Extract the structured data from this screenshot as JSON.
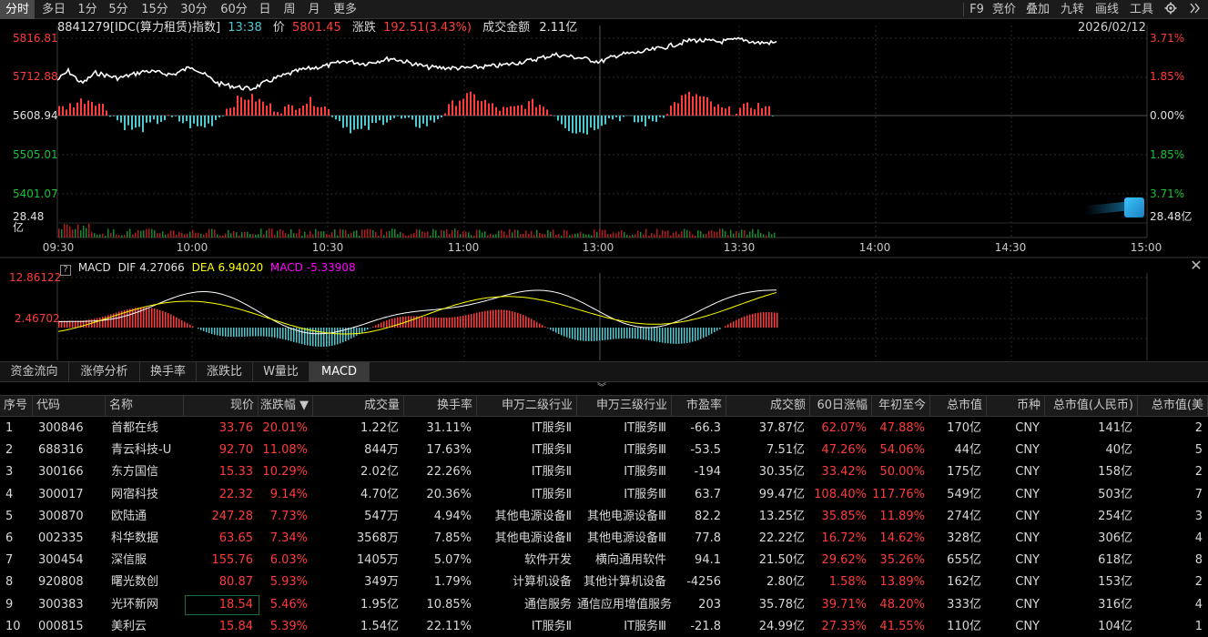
{
  "toolbar": {
    "tabs": [
      "分时",
      "多日",
      "1分",
      "5分",
      "15分",
      "30分",
      "60分",
      "日",
      "周",
      "月",
      "更多"
    ],
    "right": [
      "F9",
      "竞价",
      "叠加",
      "九转",
      "画线",
      "工具"
    ],
    "icons": [
      "settings-icon",
      "double-chevron-right-icon"
    ]
  },
  "price_chart": {
    "code": "8841279[IDC(算力租赁)指数]",
    "time": "13:38",
    "price_label": "价",
    "price": "5801.45",
    "change_label": "涨跌",
    "change": "192.51(3.43%)",
    "amount_label": "成交金额",
    "amount": "2.11亿",
    "date": "2026/02/12",
    "y_left": [
      "5816.81",
      "5712.88",
      "5608.94",
      "5505.01",
      "5401.07"
    ],
    "y_right": [
      "3.71%",
      "1.85%",
      "0.00%",
      "1.85%",
      "3.71%"
    ],
    "volume_left": "28.48亿",
    "volume_right": "28.48亿",
    "x_labels": [
      "09:30",
      "10:00",
      "10:30",
      "11:00",
      "13:00",
      "13:30",
      "14:00",
      "14:30",
      "15:00"
    ],
    "colors": {
      "up": "#ff3b3b",
      "down": "#19c23a",
      "line": "#ffffff",
      "bar_down": "#4fc8d0"
    }
  },
  "macd": {
    "help": "?",
    "name": "MACD",
    "dif_label": "DIF",
    "dif": "4.27066",
    "dea_label": "DEA",
    "dea": "6.94020",
    "macd_label": "MACD",
    "macd_val": "-5.33908",
    "y_labels": [
      "12.86122",
      "2.46702"
    ],
    "close": "✕",
    "colors": {
      "dif": "#ffffff",
      "dea": "#ffff00",
      "macd": "#ff00ff",
      "bar_up": "#ff3b3b",
      "bar_down": "#4fc8d0"
    }
  },
  "indicator_tabs": [
    "资金流向",
    "涨停分析",
    "换手率",
    "涨跌比",
    "W量比",
    "MACD"
  ],
  "indicator_active": "MACD",
  "collapse_glyph": "︾",
  "table": {
    "headers": [
      "序号",
      "代码",
      "名称",
      "现价",
      "涨跌幅 ▼",
      "成交量",
      "换手率",
      "申万二级行业",
      "申万三级行业",
      "市盈率",
      "成交额",
      "60日涨幅",
      "年初至今",
      "总市值",
      "币种",
      "总市值(人民币)",
      "总市值(美"
    ],
    "rows": [
      [
        "1",
        "300846",
        "首都在线",
        "33.76",
        "20.01%",
        "1.22亿",
        "31.11%",
        "IT服务Ⅱ",
        "IT服务Ⅲ",
        "-66.3",
        "37.87亿",
        "62.07%",
        "47.88%",
        "170亿",
        "CNY",
        "141亿",
        "2"
      ],
      [
        "2",
        "688316",
        "青云科技-U",
        "92.70",
        "11.08%",
        "844万",
        "17.63%",
        "IT服务Ⅱ",
        "IT服务Ⅲ",
        "-53.5",
        "7.51亿",
        "47.26%",
        "54.06%",
        "44亿",
        "CNY",
        "40亿",
        "5"
      ],
      [
        "3",
        "300166",
        "东方国信",
        "15.33",
        "10.29%",
        "2.02亿",
        "22.26%",
        "IT服务Ⅱ",
        "IT服务Ⅲ",
        "-194",
        "30.35亿",
        "33.42%",
        "50.00%",
        "175亿",
        "CNY",
        "158亿",
        "2"
      ],
      [
        "4",
        "300017",
        "网宿科技",
        "22.32",
        "9.14%",
        "4.70亿",
        "20.36%",
        "IT服务Ⅱ",
        "IT服务Ⅲ",
        "63.7",
        "99.47亿",
        "108.40%",
        "117.76%",
        "549亿",
        "CNY",
        "503亿",
        "7"
      ],
      [
        "5",
        "300870",
        "欧陆通",
        "247.28",
        "7.73%",
        "547万",
        "4.94%",
        "其他电源设备Ⅱ",
        "其他电源设备Ⅲ",
        "82.2",
        "13.25亿",
        "35.85%",
        "11.89%",
        "274亿",
        "CNY",
        "254亿",
        "3"
      ],
      [
        "6",
        "002335",
        "科华数据",
        "63.65",
        "7.34%",
        "3568万",
        "7.85%",
        "其他电源设备Ⅱ",
        "其他电源设备Ⅲ",
        "77.8",
        "22.22亿",
        "16.72%",
        "14.62%",
        "328亿",
        "CNY",
        "306亿",
        "4"
      ],
      [
        "7",
        "300454",
        "深信服",
        "155.76",
        "6.03%",
        "1405万",
        "5.07%",
        "软件开发",
        "横向通用软件",
        "94.1",
        "21.50亿",
        "29.62%",
        "35.26%",
        "655亿",
        "CNY",
        "618亿",
        "8"
      ],
      [
        "8",
        "920808",
        "曙光数创",
        "80.87",
        "5.93%",
        "349万",
        "1.79%",
        "计算机设备",
        "其他计算机设备",
        "-4256",
        "2.80亿",
        "1.58%",
        "13.89%",
        "162亿",
        "CNY",
        "153亿",
        "2"
      ],
      [
        "9",
        "300383",
        "光环新网",
        "18.54",
        "5.46%",
        "1.95亿",
        "10.85%",
        "通信服务",
        "通信应用增值服务",
        "203",
        "35.78亿",
        "39.71%",
        "48.20%",
        "333亿",
        "CNY",
        "316亿",
        "4"
      ],
      [
        "10",
        "000815",
        "美利云",
        "15.84",
        "5.39%",
        "1.54亿",
        "22.11%",
        "IT服务Ⅱ",
        "IT服务Ⅲ",
        "-21.8",
        "24.99亿",
        "27.33%",
        "41.55%",
        "110亿",
        "CNY",
        "104亿",
        "1"
      ]
    ]
  }
}
